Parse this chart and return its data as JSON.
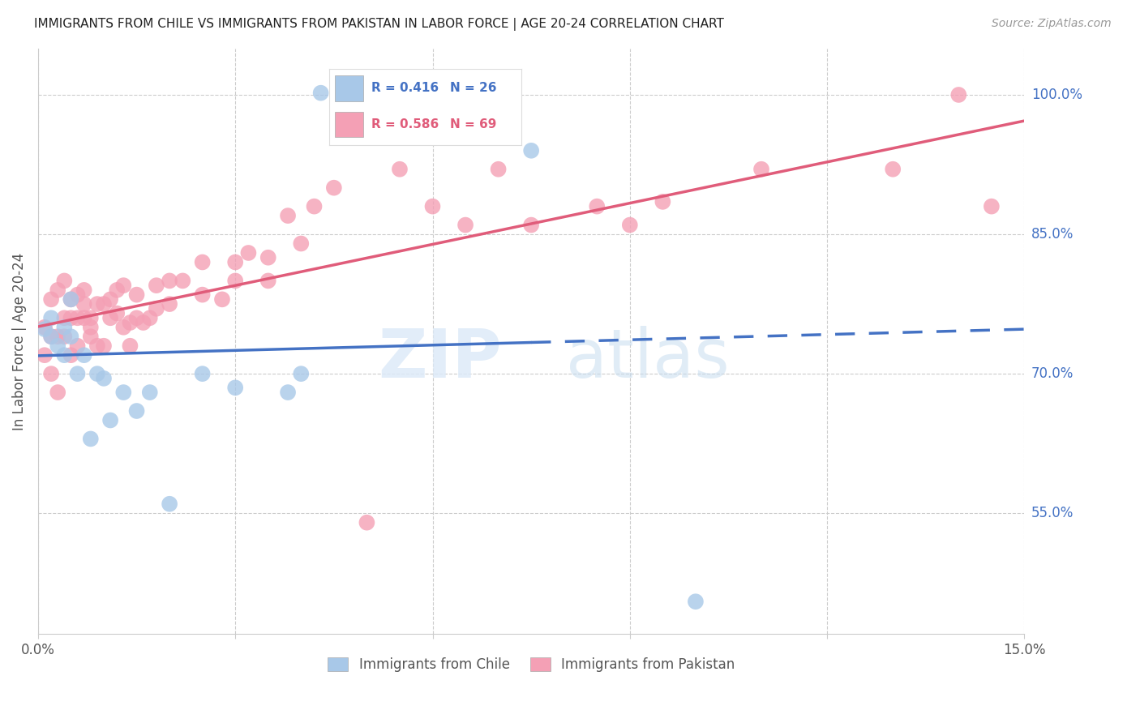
{
  "title": "IMMIGRANTS FROM CHILE VS IMMIGRANTS FROM PAKISTAN IN LABOR FORCE | AGE 20-24 CORRELATION CHART",
  "source": "Source: ZipAtlas.com",
  "ylabel": "In Labor Force | Age 20-24",
  "ylabel_ticks": [
    "100.0%",
    "85.0%",
    "70.0%",
    "55.0%"
  ],
  "ylabel_tick_vals": [
    1.0,
    0.85,
    0.7,
    0.55
  ],
  "xlim": [
    0.0,
    0.15
  ],
  "ylim": [
    0.42,
    1.05
  ],
  "chile_color": "#a8c8e8",
  "pakistan_color": "#f4a0b5",
  "chile_line_color": "#4472c4",
  "pakistan_line_color": "#e05c7a",
  "grid_color": "#cccccc",
  "chile_R": 0.416,
  "chile_N": 26,
  "pakistan_R": 0.586,
  "pakistan_N": 69,
  "chile_x": [
    0.001,
    0.002,
    0.002,
    0.003,
    0.004,
    0.004,
    0.005,
    0.005,
    0.006,
    0.007,
    0.008,
    0.009,
    0.01,
    0.011,
    0.013,
    0.015,
    0.017,
    0.02,
    0.025,
    0.03,
    0.038,
    0.04,
    0.043,
    0.046,
    0.075,
    0.1
  ],
  "chile_y": [
    0.748,
    0.76,
    0.74,
    0.73,
    0.72,
    0.75,
    0.74,
    0.78,
    0.7,
    0.72,
    0.63,
    0.7,
    0.695,
    0.65,
    0.68,
    0.66,
    0.68,
    0.56,
    0.7,
    0.685,
    0.68,
    0.7,
    1.002,
    1.002,
    0.94,
    0.455
  ],
  "pakistan_x": [
    0.001,
    0.001,
    0.002,
    0.002,
    0.002,
    0.003,
    0.003,
    0.003,
    0.004,
    0.004,
    0.004,
    0.005,
    0.005,
    0.005,
    0.006,
    0.006,
    0.006,
    0.007,
    0.007,
    0.007,
    0.008,
    0.008,
    0.008,
    0.009,
    0.009,
    0.01,
    0.01,
    0.011,
    0.011,
    0.012,
    0.012,
    0.013,
    0.013,
    0.014,
    0.014,
    0.015,
    0.015,
    0.016,
    0.017,
    0.018,
    0.018,
    0.02,
    0.02,
    0.022,
    0.025,
    0.025,
    0.028,
    0.03,
    0.03,
    0.032,
    0.035,
    0.035,
    0.038,
    0.04,
    0.042,
    0.045,
    0.05,
    0.055,
    0.06,
    0.065,
    0.07,
    0.075,
    0.085,
    0.09,
    0.095,
    0.11,
    0.13,
    0.14,
    0.145
  ],
  "pakistan_y": [
    0.72,
    0.75,
    0.7,
    0.78,
    0.74,
    0.68,
    0.74,
    0.79,
    0.76,
    0.8,
    0.74,
    0.72,
    0.76,
    0.78,
    0.73,
    0.785,
    0.76,
    0.76,
    0.79,
    0.775,
    0.75,
    0.76,
    0.74,
    0.73,
    0.775,
    0.73,
    0.775,
    0.78,
    0.76,
    0.765,
    0.79,
    0.75,
    0.795,
    0.73,
    0.755,
    0.76,
    0.785,
    0.755,
    0.76,
    0.77,
    0.795,
    0.775,
    0.8,
    0.8,
    0.785,
    0.82,
    0.78,
    0.8,
    0.82,
    0.83,
    0.8,
    0.825,
    0.87,
    0.84,
    0.88,
    0.9,
    0.54,
    0.92,
    0.88,
    0.86,
    0.92,
    0.86,
    0.88,
    0.86,
    0.885,
    0.92,
    0.92,
    1.0,
    0.88
  ],
  "xtick_positions": [
    0.0,
    0.03,
    0.06,
    0.09,
    0.12,
    0.15
  ],
  "xtick_labels": [
    "0.0%",
    "",
    "",
    "",
    "",
    "15.0%"
  ]
}
